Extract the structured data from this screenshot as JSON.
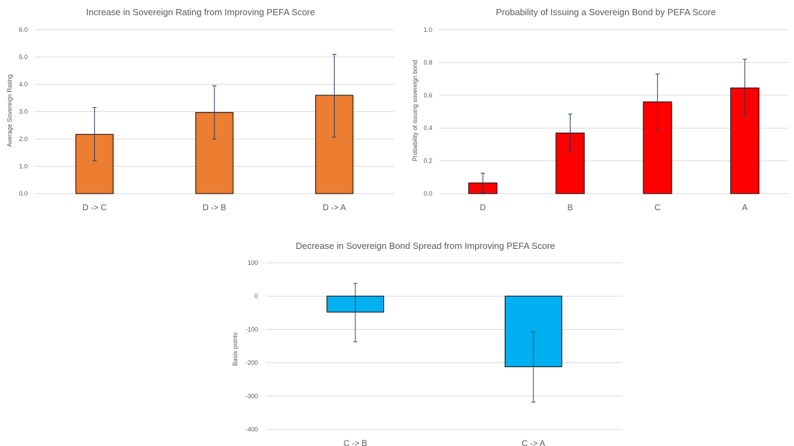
{
  "chart_data": [
    {
      "type": "bar",
      "title": "Increase in Sovereign Rating from Improving PEFA Score",
      "xlabel": "",
      "ylabel": "Average Sovereign Rating",
      "categories": [
        "D -> C",
        "D -> B",
        "D -> A"
      ],
      "values": [
        2.17,
        2.97,
        3.6
      ],
      "error_low": [
        1.2,
        2.0,
        2.07
      ],
      "error_high": [
        3.15,
        3.95,
        5.1
      ],
      "ylim": [
        0,
        6
      ],
      "yticks": [
        0,
        1,
        2,
        3,
        4,
        5,
        6
      ],
      "ytick_labels": [
        "0.0",
        "1.0",
        "2.0",
        "3.0",
        "4.0",
        "5.0",
        "6.0"
      ],
      "bar_color": "#ED7D31",
      "error_color": "#1F3864",
      "grid": true,
      "legend": "none"
    },
    {
      "type": "bar",
      "title": "Probability of Issuing a Sovereign Bond by PEFA Score",
      "xlabel": "",
      "ylabel": "Probability of issuing sovereign bond",
      "categories": [
        "D",
        "B",
        "C",
        "A"
      ],
      "values": [
        0.065,
        0.37,
        0.56,
        0.645
      ],
      "error_low": [
        0.005,
        0.255,
        0.39,
        0.475
      ],
      "error_high": [
        0.125,
        0.485,
        0.73,
        0.82
      ],
      "ylim": [
        0,
        1
      ],
      "yticks": [
        0,
        0.2,
        0.4,
        0.6,
        0.8,
        1.0
      ],
      "ytick_labels": [
        "0.0",
        "0.2",
        "0.4",
        "0.6",
        "0.8",
        "1.0"
      ],
      "bar_color": "#FF0000",
      "error_color": "#1F3864",
      "grid": true,
      "legend": "none"
    },
    {
      "type": "bar",
      "title": "Decrease in Sovereign Bond Spread from Improving PEFA Score",
      "xlabel": "",
      "ylabel": "Basis points",
      "categories": [
        "C -> B",
        "C -> A"
      ],
      "values": [
        -48,
        -212
      ],
      "error_low": [
        -137,
        -318
      ],
      "error_high": [
        38,
        -107
      ],
      "ylim": [
        -400,
        100
      ],
      "yticks": [
        -400,
        -300,
        -200,
        -100,
        0,
        100
      ],
      "ytick_labels": [
        "-400",
        "-300",
        "-200",
        "-100",
        "0",
        "100"
      ],
      "bar_color": "#00B0F0",
      "error_color": "#404040",
      "grid": true,
      "legend": "none"
    }
  ]
}
